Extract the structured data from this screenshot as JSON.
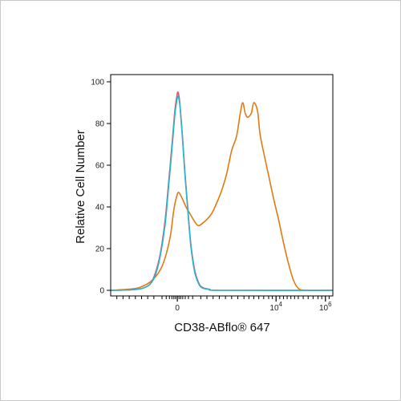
{
  "chart_data": {
    "type": "line",
    "title": "",
    "xlabel": "CD38-ABflo® 647",
    "ylabel": "Relative Cell Number",
    "ylim": [
      0,
      100
    ],
    "yticks": [
      0,
      20,
      40,
      60,
      80,
      100
    ],
    "xscale": "biexponential",
    "xticks": [
      {
        "label": "0",
        "sup": ""
      },
      {
        "label": "10",
        "sup": "4"
      },
      {
        "label": "10",
        "sup": "6"
      }
    ],
    "grid": false,
    "legend": "none",
    "series": [
      {
        "color": "#e07b10",
        "points": [
          [
            -2.7,
            0
          ],
          [
            -2.0,
            0.5
          ],
          [
            -1.5,
            1.5
          ],
          [
            -1.0,
            5
          ],
          [
            -0.6,
            12
          ],
          [
            -0.3,
            25
          ],
          [
            -0.15,
            38
          ],
          [
            -0.05,
            44
          ],
          [
            0.05,
            47
          ],
          [
            0.2,
            44
          ],
          [
            0.35,
            40
          ],
          [
            0.5,
            37
          ],
          [
            0.7,
            33
          ],
          [
            0.85,
            31
          ],
          [
            1.0,
            32
          ],
          [
            1.2,
            34
          ],
          [
            1.4,
            37
          ],
          [
            1.6,
            42
          ],
          [
            1.8,
            48
          ],
          [
            2.0,
            56
          ],
          [
            2.2,
            67
          ],
          [
            2.4,
            74
          ],
          [
            2.55,
            85
          ],
          [
            2.65,
            90
          ],
          [
            2.75,
            85
          ],
          [
            2.85,
            83
          ],
          [
            3.0,
            85
          ],
          [
            3.1,
            90
          ],
          [
            3.25,
            86
          ],
          [
            3.35,
            75
          ],
          [
            3.5,
            66
          ],
          [
            3.7,
            55
          ],
          [
            3.9,
            44
          ],
          [
            4.1,
            34
          ],
          [
            4.3,
            23
          ],
          [
            4.5,
            13
          ],
          [
            4.7,
            5
          ],
          [
            4.9,
            1
          ],
          [
            5.2,
            0
          ],
          [
            6.3,
            0
          ]
        ]
      },
      {
        "color": "#d35a6e",
        "points": [
          [
            -2.7,
            0
          ],
          [
            -1.8,
            0.3
          ],
          [
            -1.4,
            1
          ],
          [
            -1.1,
            3
          ],
          [
            -0.9,
            8
          ],
          [
            -0.7,
            17
          ],
          [
            -0.5,
            33
          ],
          [
            -0.35,
            52
          ],
          [
            -0.2,
            72
          ],
          [
            -0.1,
            86
          ],
          [
            -0.02,
            93
          ],
          [
            0.03,
            95
          ],
          [
            0.1,
            90
          ],
          [
            0.2,
            75
          ],
          [
            0.3,
            58
          ],
          [
            0.42,
            40
          ],
          [
            0.55,
            22
          ],
          [
            0.7,
            10
          ],
          [
            0.85,
            4
          ],
          [
            1.0,
            1.5
          ],
          [
            1.3,
            0.5
          ],
          [
            1.8,
            0
          ],
          [
            6.3,
            0
          ]
        ]
      },
      {
        "color": "#2ab5cf",
        "points": [
          [
            -2.7,
            0
          ],
          [
            -1.8,
            0.3
          ],
          [
            -1.4,
            1
          ],
          [
            -1.1,
            3
          ],
          [
            -0.9,
            7
          ],
          [
            -0.7,
            16
          ],
          [
            -0.5,
            31
          ],
          [
            -0.35,
            50
          ],
          [
            -0.2,
            70
          ],
          [
            -0.1,
            84
          ],
          [
            -0.02,
            91
          ],
          [
            0.03,
            93
          ],
          [
            0.1,
            89
          ],
          [
            0.2,
            74
          ],
          [
            0.3,
            57
          ],
          [
            0.42,
            39
          ],
          [
            0.55,
            21
          ],
          [
            0.7,
            9
          ],
          [
            0.85,
            3.5
          ],
          [
            1.0,
            1.2
          ],
          [
            1.3,
            0.4
          ],
          [
            1.8,
            0
          ],
          [
            6.3,
            0
          ]
        ]
      }
    ]
  }
}
